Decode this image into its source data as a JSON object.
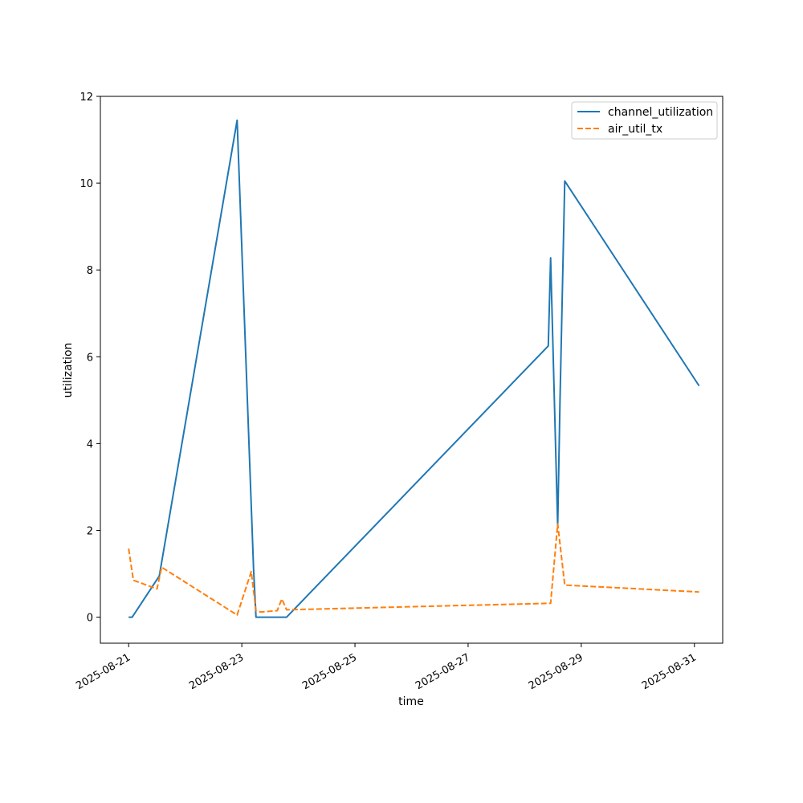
{
  "chart_data": {
    "type": "line",
    "title": "",
    "xlabel": "time",
    "ylabel": "utilization",
    "x_type": "date",
    "xlim": [
      "2025-08-20T12:00",
      "2025-08-31T12:00"
    ],
    "ylim": [
      -0.6,
      12
    ],
    "x_ticks": [
      {
        "date": "2025-08-21T00:00",
        "label": "2025-08-21"
      },
      {
        "date": "2025-08-23T00:00",
        "label": "2025-08-23"
      },
      {
        "date": "2025-08-25T00:00",
        "label": "2025-08-25"
      },
      {
        "date": "2025-08-27T00:00",
        "label": "2025-08-27"
      },
      {
        "date": "2025-08-29T00:00",
        "label": "2025-08-29"
      },
      {
        "date": "2025-08-31T00:00",
        "label": "2025-08-31"
      }
    ],
    "y_ticks": [
      0,
      2,
      4,
      6,
      8,
      10,
      12
    ],
    "grid": false,
    "legend_position": "top-right",
    "series": [
      {
        "name": "channel_utilization",
        "color": "#1f77b4",
        "style": "solid",
        "points": [
          {
            "x": "2025-08-21T00:00",
            "y": 0.0
          },
          {
            "x": "2025-08-21T01:30",
            "y": 0.0
          },
          {
            "x": "2025-08-21T13:00",
            "y": 0.95
          },
          {
            "x": "2025-08-22T22:00",
            "y": 11.45
          },
          {
            "x": "2025-08-23T05:00",
            "y": 1.1
          },
          {
            "x": "2025-08-23T06:00",
            "y": 0.0
          },
          {
            "x": "2025-08-23T19:00",
            "y": 0.0
          },
          {
            "x": "2025-08-28T10:00",
            "y": 6.25
          },
          {
            "x": "2025-08-28T11:00",
            "y": 8.28
          },
          {
            "x": "2025-08-28T14:00",
            "y": 2.1
          },
          {
            "x": "2025-08-28T15:00",
            "y": 5.0
          },
          {
            "x": "2025-08-28T17:00",
            "y": 10.05
          },
          {
            "x": "2025-08-31T02:00",
            "y": 5.33
          }
        ]
      },
      {
        "name": "air_util_tx",
        "color": "#ff7f0e",
        "style": "dashed",
        "points": [
          {
            "x": "2025-08-21T00:00",
            "y": 1.58
          },
          {
            "x": "2025-08-21T02:00",
            "y": 0.85
          },
          {
            "x": "2025-08-21T12:00",
            "y": 0.65
          },
          {
            "x": "2025-08-21T14:00",
            "y": 1.15
          },
          {
            "x": "2025-08-22T22:00",
            "y": 0.05
          },
          {
            "x": "2025-08-23T04:00",
            "y": 1.05
          },
          {
            "x": "2025-08-23T06:00",
            "y": 0.15
          },
          {
            "x": "2025-08-23T08:00",
            "y": 0.12
          },
          {
            "x": "2025-08-23T15:00",
            "y": 0.15
          },
          {
            "x": "2025-08-23T17:00",
            "y": 0.42
          },
          {
            "x": "2025-08-23T19:00",
            "y": 0.17
          },
          {
            "x": "2025-08-28T11:00",
            "y": 0.32
          },
          {
            "x": "2025-08-28T14:00",
            "y": 2.15
          },
          {
            "x": "2025-08-28T17:00",
            "y": 0.74
          },
          {
            "x": "2025-08-31T02:00",
            "y": 0.58
          }
        ]
      }
    ]
  }
}
